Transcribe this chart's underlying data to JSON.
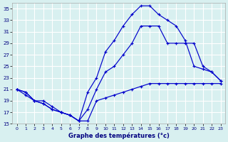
{
  "xlabel": "Graphe des températures (°c)",
  "bg_color": "#d8f0f0",
  "grid_color": "#b8d8d8",
  "line_color": "#0000cc",
  "ylim": [
    15,
    36
  ],
  "xlim": [
    -0.5,
    23.5
  ],
  "yticks": [
    15,
    17,
    19,
    21,
    23,
    25,
    27,
    29,
    31,
    33,
    35
  ],
  "xticks": [
    0,
    1,
    2,
    3,
    4,
    5,
    6,
    7,
    8,
    9,
    10,
    11,
    12,
    13,
    14,
    15,
    16,
    17,
    18,
    19,
    20,
    21,
    22,
    23
  ],
  "series": [
    {
      "x": [
        0,
        1,
        2,
        3,
        4,
        5,
        6,
        7,
        8,
        9,
        10,
        11,
        12,
        13,
        14,
        15,
        16,
        17,
        18,
        19,
        20,
        21,
        22,
        23
      ],
      "y": [
        21,
        20,
        19,
        19,
        18,
        17,
        16.5,
        15.5,
        15.5,
        19,
        19.5,
        20,
        20.5,
        21,
        21.5,
        22,
        22,
        22,
        22,
        22,
        22,
        22,
        22,
        22
      ]
    },
    {
      "x": [
        0,
        1,
        2,
        3,
        4,
        5,
        6,
        7,
        8,
        9,
        10,
        11,
        12,
        13,
        14,
        15,
        16,
        17,
        18,
        19,
        20,
        21,
        22,
        23
      ],
      "y": [
        21,
        20.5,
        19,
        18.5,
        17.5,
        17,
        16.5,
        15.5,
        17.5,
        21,
        24,
        25,
        27,
        29,
        32,
        32,
        32,
        29,
        29,
        29,
        29,
        25,
        24,
        22.5
      ]
    },
    {
      "x": [
        0,
        1,
        2,
        3,
        4,
        5,
        6,
        7,
        8,
        9,
        10,
        11,
        12,
        13,
        14,
        15,
        16,
        17,
        18,
        19,
        20,
        21,
        22,
        23
      ],
      "y": [
        21,
        20.5,
        19,
        18.5,
        17.5,
        17,
        16.5,
        15.5,
        20.5,
        23,
        27.5,
        29.5,
        32,
        34,
        35.5,
        35.5,
        34,
        33,
        32,
        29.5,
        25,
        24.5,
        24,
        22.5
      ]
    }
  ]
}
